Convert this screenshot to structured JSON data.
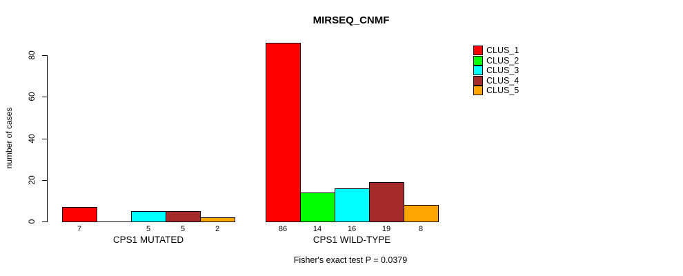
{
  "chart_data": {
    "type": "bar",
    "title": "MIRSEQ_CNMF",
    "ylabel": "number of cases",
    "xlabel": "",
    "caption": "Fisher's exact test P = 0.0379",
    "ylim": [
      0,
      86
    ],
    "yticks": [
      0,
      20,
      40,
      60,
      80
    ],
    "grid": false,
    "legend_position": "right",
    "categories": [
      "CPS1 MUTATED",
      "CPS1 WILD-TYPE"
    ],
    "series": [
      {
        "name": "CLUS_1",
        "color": "#FF0000",
        "values": [
          7,
          86
        ]
      },
      {
        "name": "CLUS_2",
        "color": "#00FF00",
        "values": [
          0,
          14
        ]
      },
      {
        "name": "CLUS_3",
        "color": "#00FFFF",
        "values": [
          5,
          16
        ]
      },
      {
        "name": "CLUS_4",
        "color": "#A52A2A",
        "values": [
          5,
          19
        ]
      },
      {
        "name": "CLUS_5",
        "color": "#FFA500",
        "values": [
          2,
          8
        ]
      }
    ],
    "bar_value_labels": [
      [
        "7",
        "",
        "5",
        "5",
        "2"
      ],
      [
        "86",
        "14",
        "16",
        "19",
        "8"
      ]
    ],
    "axis_color": "#000000",
    "bar_border_color": "#000000"
  }
}
